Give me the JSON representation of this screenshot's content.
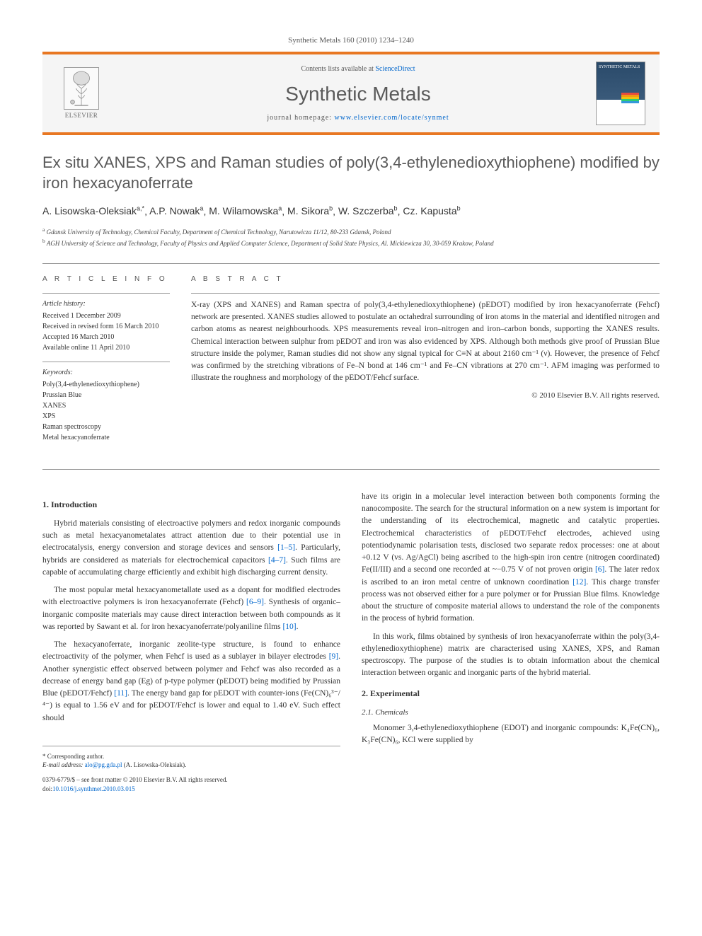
{
  "citation": "Synthetic Metals 160 (2010) 1234–1240",
  "header": {
    "contents_prefix": "Contents lists available at ",
    "contents_link": "ScienceDirect",
    "journal_name": "Synthetic Metals",
    "homepage_prefix": "journal homepage: ",
    "homepage_url": "www.elsevier.com/locate/synmet",
    "publisher": "ELSEVIER",
    "cover_title": "SYNTHETIC METALS"
  },
  "title": "Ex situ XANES, XPS and Raman studies of poly(3,4-ethylenedioxythiophene) modified by iron hexacyanoferrate",
  "authors_html": "A. Lisowska-Oleksiak",
  "authors": [
    {
      "name": "A. Lisowska-Oleksiak",
      "sup": "a,*"
    },
    {
      "name": "A.P. Nowak",
      "sup": "a"
    },
    {
      "name": "M. Wilamowska",
      "sup": "a"
    },
    {
      "name": "M. Sikora",
      "sup": "b"
    },
    {
      "name": "W. Szczerba",
      "sup": "b"
    },
    {
      "name": "Cz. Kapusta",
      "sup": "b"
    }
  ],
  "affiliations": [
    {
      "sup": "a",
      "text": "Gdansk University of Technology, Chemical Faculty, Department of Chemical Technology, Narutowicza 11/12, 80-233 Gdansk, Poland"
    },
    {
      "sup": "b",
      "text": "AGH University of Science and Technology, Faculty of Physics and Applied Computer Science, Department of Solid State Physics, Al. Mickiewicza 30, 30-059 Krakow, Poland"
    }
  ],
  "article_info": {
    "heading": "A R T I C L E   I N F O",
    "history_label": "Article history:",
    "history": [
      "Received 1 December 2009",
      "Received in revised form 16 March 2010",
      "Accepted 16 March 2010",
      "Available online 11 April 2010"
    ],
    "keywords_label": "Keywords:",
    "keywords": [
      "Poly(3,4-ethylenedioxythiophene)",
      "Prussian Blue",
      "XANES",
      "XPS",
      "Raman spectroscopy",
      "Metal hexacyanoferrate"
    ]
  },
  "abstract": {
    "heading": "A B S T R A C T",
    "text": "X-ray (XPS and XANES) and Raman spectra of poly(3,4-ethylenedioxythiophene) (pEDOT) modified by iron hexacyanoferrate (Fehcf) network are presented. XANES studies allowed to postulate an octahedral surrounding of iron atoms in the material and identified nitrogen and carbon atoms as nearest neighbourhoods. XPS measurements reveal iron–nitrogen and iron–carbon bonds, supporting the XANES results. Chemical interaction between sulphur from pEDOT and iron was also evidenced by XPS. Although both methods give proof of Prussian Blue structure inside the polymer, Raman studies did not show any signal typical for C≡N at about 2160 cm⁻¹ (ν). However, the presence of Fehcf was confirmed by the stretching vibrations of Fe–N bond at 146 cm⁻¹ and Fe–CN vibrations at 270 cm⁻¹. AFM imaging was performed to illustrate the roughness and morphology of the pEDOT/Fehcf surface.",
    "copyright": "© 2010 Elsevier B.V. All rights reserved."
  },
  "sections": {
    "intro_heading": "1. Introduction",
    "intro_p1": "Hybrid materials consisting of electroactive polymers and redox inorganic compounds such as metal hexacyanometalates attract attention due to their potential use in electrocatalysis, energy conversion and storage devices and sensors [1–5]. Particularly, hybrids are considered as materials for electrochemical capacitors [4–7]. Such films are capable of accumulating charge efficiently and exhibit high discharging current density.",
    "intro_p2": "The most popular metal hexacyanometallate used as a dopant for modified electrodes with electroactive polymers is iron hexacyanoferrate (Fehcf) [6–9]. Synthesis of organic–inorganic composite materials may cause direct interaction between both compounds as it was reported by Sawant et al. for iron hexacyanoferrate/polyaniline films [10].",
    "intro_p3": "The hexacyanoferrate, inorganic zeolite-type structure, is found to enhance electroactivity of the polymer, when Fehcf is used as a sublayer in bilayer electrodes [9]. Another synergistic effect observed between polymer and Fehcf was also recorded as a decrease of energy band gap (Eg) of p-type polymer (pEDOT) being modified by Prussian Blue (pEDOT/Fehcf) [11]. The energy band gap for pEDOT with counter-ions (Fe(CN)₆³⁻/⁴⁻) is equal to 1.56 eV and for pEDOT/Fehcf is lower and equal to 1.40 eV. Such effect should",
    "intro_p4": "have its origin in a molecular level interaction between both components forming the nanocomposite. The search for the structural information on a new system is important for the understanding of its electrochemical, magnetic and catalytic properties. Electrochemical characteristics of pEDOT/Fehcf electrodes, achieved using potentiodynamic polarisation tests, disclosed two separate redox processes: one at about +0.12 V (vs. Ag/AgCl) being ascribed to the high-spin iron centre (nitrogen coordinated) Fe(II/III) and a second one recorded at ~−0.75 V of not proven origin [6]. The later redox is ascribed to an iron metal centre of unknown coordination [12]. This charge transfer process was not observed either for a pure polymer or for Prussian Blue films. Knowledge about the structure of composite material allows to understand the role of the components in the process of hybrid formation.",
    "intro_p5": "In this work, films obtained by synthesis of iron hexacyanoferrate within the poly(3,4-ethylenedioxythiophene) matrix are characterised using XANES, XPS, and Raman spectroscopy. The purpose of the studies is to obtain information about the chemical interaction between organic and inorganic parts of the hybrid material.",
    "exp_heading": "2. Experimental",
    "chem_heading": "2.1. Chemicals",
    "chem_p1": "Monomer 3,4-ethylenedioxythiophene (EDOT) and inorganic compounds: K₄Fe(CN)₆, K₃Fe(CN)₆, KCl were supplied by"
  },
  "footer": {
    "corr_label": "* Corresponding author.",
    "email_label": "E-mail address: ",
    "email": "alo@pg.gda.pl",
    "email_suffix": " (A. Lisowska-Oleksiak).",
    "issn_line": "0379-6779/$ – see front matter © 2010 Elsevier B.V. All rights reserved.",
    "doi_label": "doi:",
    "doi": "10.1016/j.synthmet.2010.03.015"
  },
  "colors": {
    "accent": "#e87722",
    "link": "#0066cc",
    "heading": "#5a5a5a"
  }
}
